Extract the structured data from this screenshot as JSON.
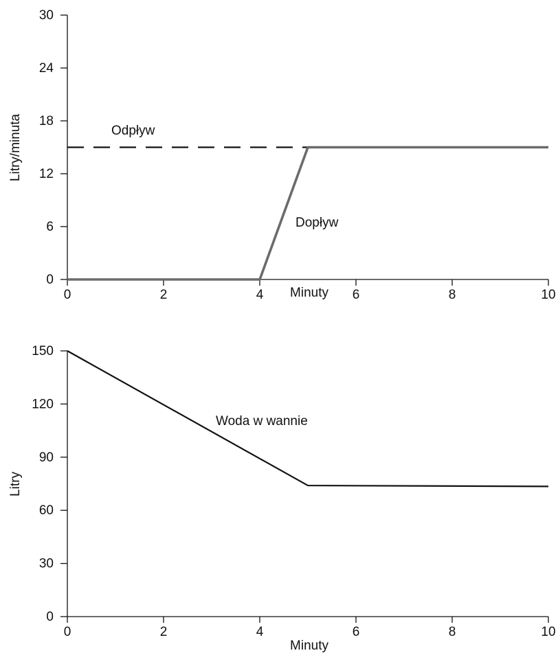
{
  "chart_data": [
    {
      "type": "line",
      "xlabel": "Minuty",
      "ylabel": "Litry/minuta",
      "xlim": [
        0,
        10
      ],
      "ylim": [
        0,
        30
      ],
      "xticks": [
        0,
        2,
        4,
        6,
        8,
        10
      ],
      "yticks": [
        0,
        6,
        12,
        18,
        24,
        30
      ],
      "grid": false,
      "series": [
        {
          "name": "Odpływ",
          "style": "dashed",
          "color": "#111111",
          "x": [
            0,
            10
          ],
          "y": [
            15,
            15
          ]
        },
        {
          "name": "Dopływ",
          "style": "solid",
          "color": "#6b6b6b",
          "x": [
            0,
            4,
            5,
            10
          ],
          "y": [
            0,
            0,
            15,
            15
          ]
        }
      ]
    },
    {
      "type": "line",
      "xlabel": "Minuty",
      "ylabel": "Litry",
      "xlim": [
        0,
        10
      ],
      "ylim": [
        0,
        150
      ],
      "xticks": [
        0,
        2,
        4,
        6,
        8,
        10
      ],
      "yticks": [
        0,
        30,
        60,
        90,
        120,
        150
      ],
      "grid": false,
      "series": [
        {
          "name": "Woda w wannie",
          "style": "solid",
          "color": "#111111",
          "x": [
            0,
            5,
            10
          ],
          "y": [
            150,
            74,
            73.5
          ]
        }
      ]
    }
  ]
}
